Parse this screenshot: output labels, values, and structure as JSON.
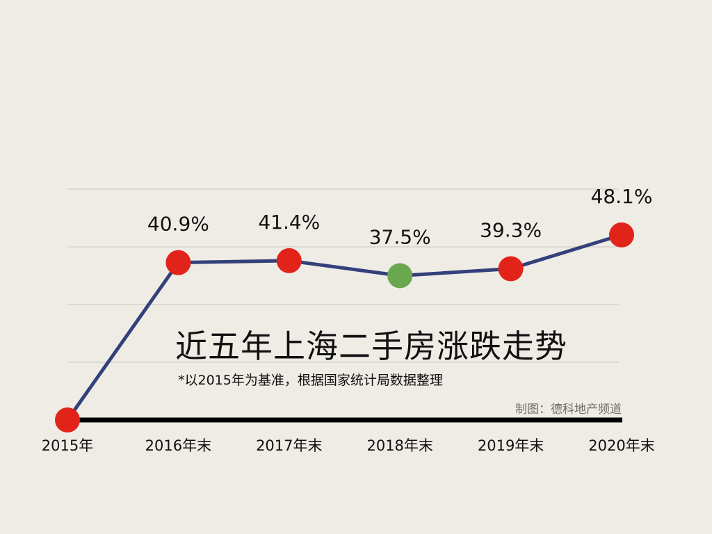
{
  "chart_data": {
    "type": "line",
    "title": "近五年上海二手房涨跌走势",
    "subtitle": "*以2015年为基准，根据国家统计局数据整理",
    "credit": "制图：德科地产频道",
    "categories": [
      "2015年",
      "2016年末",
      "2017年末",
      "2018年末",
      "2019年末",
      "2020年末"
    ],
    "values": [
      0,
      40.9,
      41.4,
      37.5,
      39.3,
      48.1
    ],
    "data_labels": [
      "",
      "40.9%",
      "41.4%",
      "37.5%",
      "39.3%",
      "48.1%"
    ],
    "marker_colors": [
      "#e2231a",
      "#e2231a",
      "#e2231a",
      "#6aa84f",
      "#e2231a",
      "#e2231a"
    ],
    "line_color": "#34407a",
    "baseline_color": "#000000",
    "grid_color": "#c8c5bf",
    "ylim": [
      0,
      60
    ],
    "grid": true,
    "yaxis_labels_shown": false
  }
}
